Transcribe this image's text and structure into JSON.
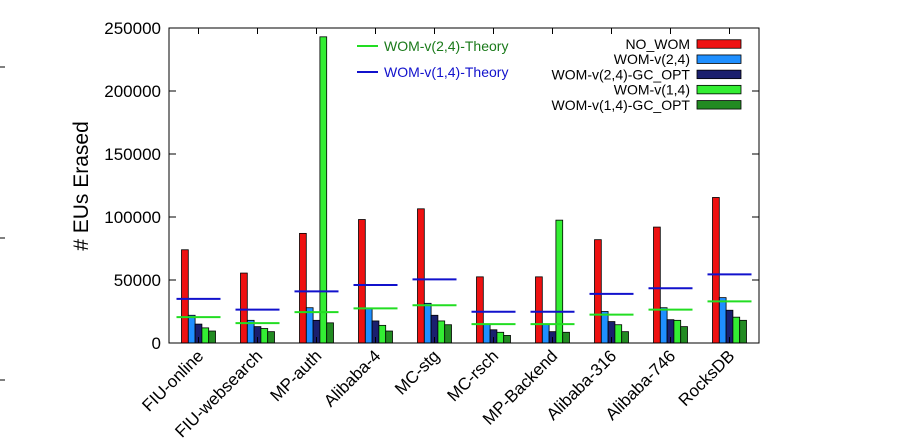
{
  "chart_data": {
    "type": "bar",
    "title": "",
    "xlabel": "",
    "ylabel": "# EUs Erased",
    "ylim": [
      0,
      250000
    ],
    "yticks": [
      0,
      50000,
      100000,
      150000,
      200000,
      250000
    ],
    "grid": false,
    "legend_position": "top-right",
    "categories": [
      "FIU-online",
      "FIU-websearch",
      "MP-auth",
      "Alibaba-4",
      "MC-stg",
      "MC-rsch",
      "MP-Backend",
      "Alibaba-316",
      "Alibaba-746",
      "RocksDB"
    ],
    "series": [
      {
        "name": "NO_WOM",
        "color": "#ee1111",
        "values": [
          74000,
          55500,
          87000,
          98000,
          106500,
          52500,
          52500,
          82000,
          92000,
          115500
        ]
      },
      {
        "name": "WOM-v(2,4)",
        "color": "#1f8fff",
        "values": [
          22000,
          18000,
          28000,
          27500,
          31500,
          15000,
          15000,
          25000,
          28000,
          36000
        ]
      },
      {
        "name": "WOM-v(2,4)-GC_OPT",
        "color": "#1a1f6e",
        "values": [
          15000,
          13000,
          18000,
          17500,
          22000,
          10500,
          9000,
          17000,
          18500,
          26000
        ]
      },
      {
        "name": "WOM-v(1,4)",
        "color": "#33ee33",
        "values": [
          12000,
          11500,
          243000,
          14000,
          17500,
          8500,
          97500,
          14500,
          18000,
          20500
        ]
      },
      {
        "name": "WOM-v(1,4)-GC_OPT",
        "color": "#228b22",
        "values": [
          9500,
          9000,
          16000,
          9500,
          14500,
          6000,
          8500,
          9000,
          13000,
          18000
        ]
      }
    ],
    "theory_lines": [
      {
        "name": "WOM-v(2,4)-Theory",
        "color": "#22dd22",
        "text_color": "#1a7a1a",
        "values": [
          20500,
          15800,
          24500,
          27500,
          30000,
          15000,
          15000,
          22500,
          26500,
          33000
        ]
      },
      {
        "name": "WOM-v(1,4)-Theory",
        "color": "#1111cc",
        "text_color": "#1111cc",
        "values": [
          35000,
          26500,
          41000,
          46000,
          50500,
          24800,
          24800,
          39000,
          43500,
          54500
        ]
      }
    ]
  }
}
